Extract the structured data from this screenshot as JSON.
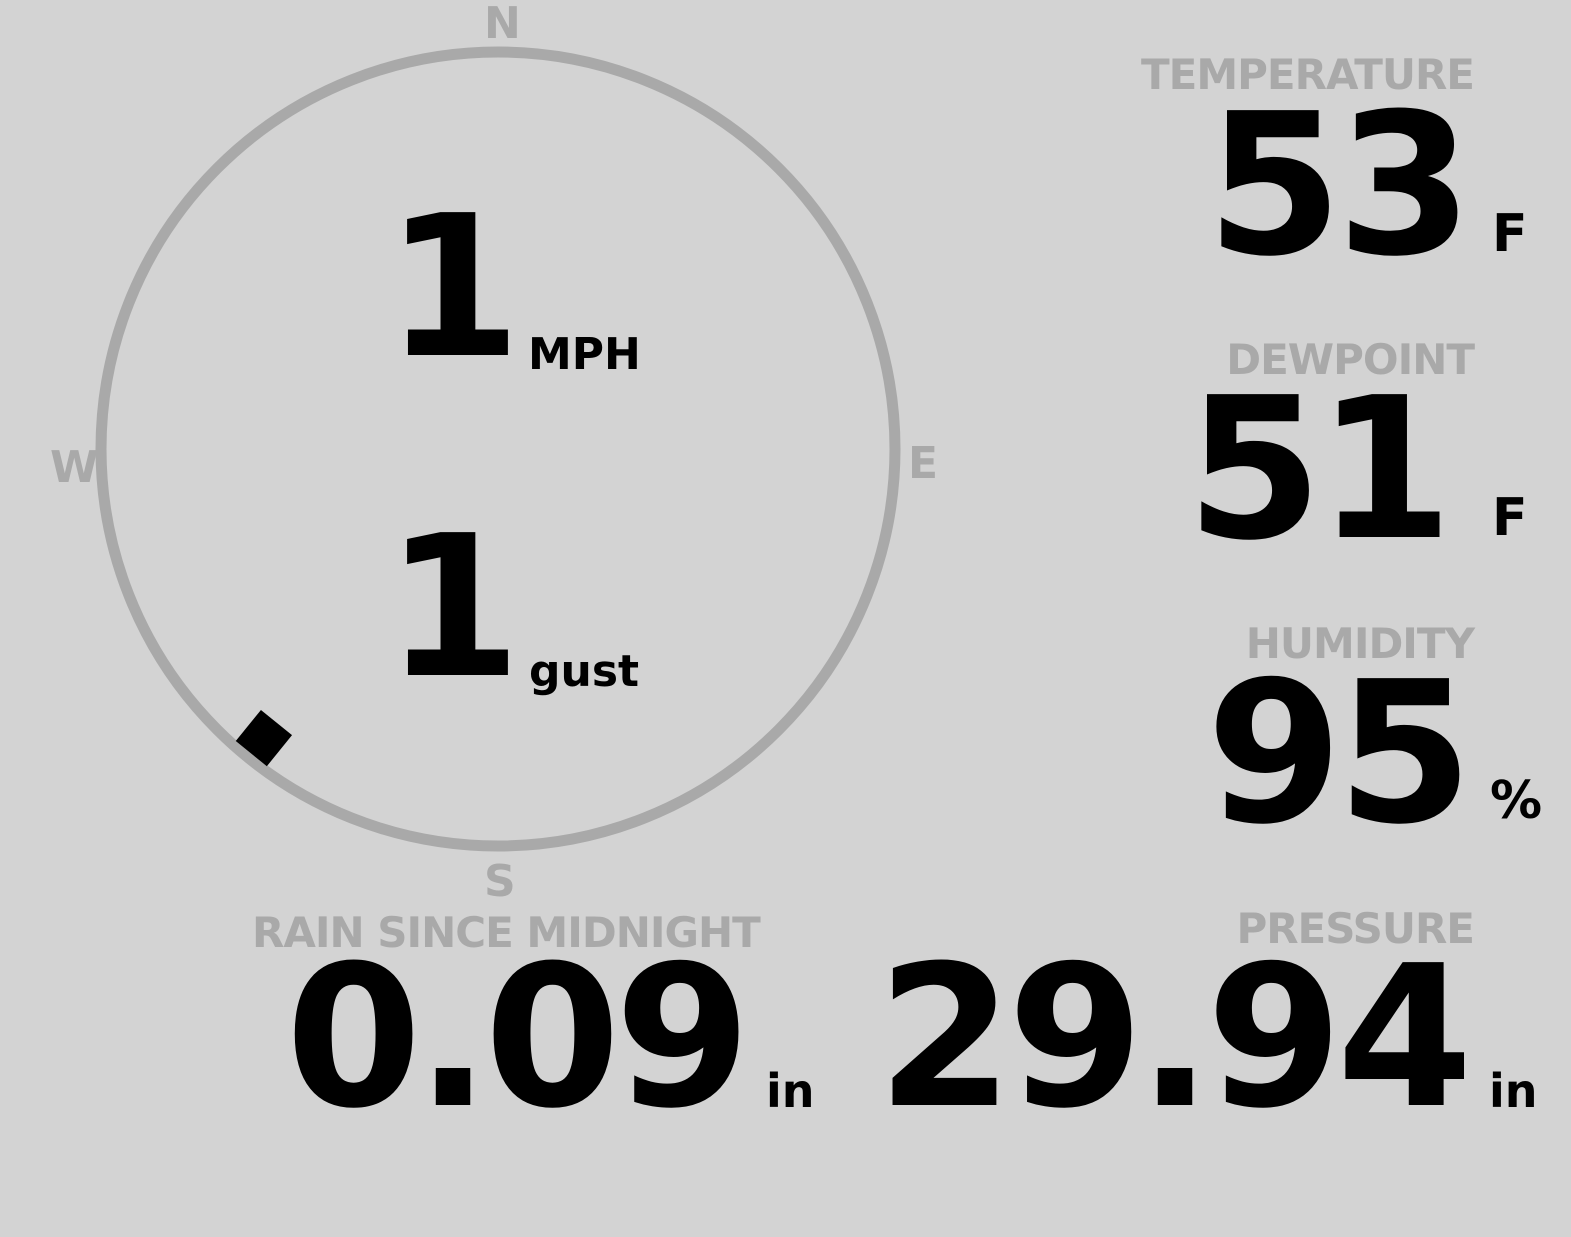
{
  "compass": {
    "north": "N",
    "east": "E",
    "south": "S",
    "west": "W",
    "wind_direction_deg": 219,
    "ring_color": "#a9a9a9"
  },
  "wind": {
    "speed": "1",
    "speed_unit": "MPH",
    "gust": "1",
    "gust_unit": "gust"
  },
  "temperature": {
    "label": "TEMPERATURE",
    "value": "53",
    "unit": "F"
  },
  "dewpoint": {
    "label": "DEWPOINT",
    "value": "51",
    "unit": "F"
  },
  "humidity": {
    "label": "HUMIDITY",
    "value": "95",
    "unit": "%"
  },
  "rain": {
    "label": "RAIN SINCE MIDNIGHT",
    "value": "0.09",
    "unit": "in"
  },
  "pressure": {
    "label": "PRESSURE",
    "value": "29.94",
    "unit": "in"
  },
  "colors": {
    "background": "#d3d3d3",
    "label": "#a9a9a9",
    "value": "#000000"
  }
}
